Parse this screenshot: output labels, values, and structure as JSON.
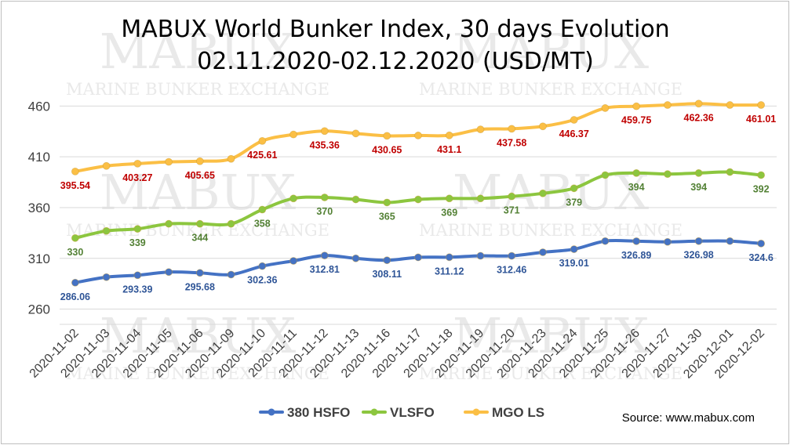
{
  "chart_data": {
    "type": "line",
    "title": "MABUX World Bunker Index, 30 days Evolution",
    "subtitle": "02.11.2020-02.12.2020 (USD/MT)",
    "categories": [
      "2020-11-02",
      "2020-11-03",
      "2020-11-04",
      "2020-11-05",
      "2020-11-06",
      "2020-11-09",
      "2020-11-10",
      "2020-11-11",
      "2020-11-12",
      "2020-11-13",
      "2020-11-16",
      "2020-11-17",
      "2020-11-18",
      "2020-11-19",
      "2020-11-20",
      "2020-11-23",
      "2020-11-24",
      "2020-11-25",
      "2020-11-26",
      "2020-11-27",
      "2020-11-30",
      "2020-12-01",
      "2020-12-02"
    ],
    "y_ticks": [
      260,
      310,
      360,
      410,
      460
    ],
    "ylim": [
      245,
      478
    ],
    "grid": "horizontal",
    "legend_position": "bottom",
    "series": [
      {
        "name": "380 HSFO",
        "color": "#4472c4",
        "label_color": "#2f5597",
        "label_position": "below",
        "values": [
          286.06,
          291.5,
          293.39,
          296.5,
          295.68,
          294,
          302.36,
          307.5,
          312.81,
          310,
          308.11,
          311,
          311.12,
          312.5,
          312.46,
          316,
          319.01,
          327,
          326.89,
          326.2,
          326.98,
          327,
          324.6
        ],
        "labels": [
          "286.06",
          "",
          "293.39",
          "",
          "295.68",
          "",
          "302.36",
          "",
          "312.81",
          "",
          "308.11",
          "",
          "311.12",
          "",
          "312.46",
          "",
          "319.01",
          "",
          "326.89",
          "",
          "326.98",
          "",
          "324.6"
        ]
      },
      {
        "name": "VLSFO",
        "color": "#8cc63f",
        "label_color": "#538135",
        "label_position": "below",
        "values": [
          330,
          337,
          339,
          344,
          344,
          344,
          358,
          369,
          370,
          368,
          365,
          368,
          369,
          369,
          371,
          374,
          379,
          392,
          394,
          393,
          394,
          395,
          392
        ],
        "labels": [
          "330",
          "",
          "339",
          "",
          "344",
          "",
          "358",
          "",
          "370",
          "",
          "365",
          "",
          "369",
          "",
          "371",
          "",
          "379",
          "",
          "394",
          "",
          "394",
          "",
          "392"
        ]
      },
      {
        "name": "MGO LS",
        "color": "#fbbf45",
        "label_color": "#c00000",
        "label_position": "below",
        "values": [
          395.54,
          401,
          403.27,
          405,
          405.65,
          408,
          425.61,
          432,
          435.36,
          433,
          430.65,
          431,
          431.1,
          437,
          437.58,
          440,
          446.37,
          458,
          459.75,
          461,
          462.36,
          461,
          461.01
        ],
        "labels": [
          "395.54",
          "",
          "403.27",
          "",
          "405.65",
          "",
          "425.61",
          "",
          "435.36",
          "",
          "430.65",
          "",
          "431.1",
          "",
          "437.58",
          "",
          "446.37",
          "",
          "459.75",
          "",
          "462.36",
          "",
          "461.01"
        ]
      }
    ]
  },
  "watermark": {
    "big": "MABUX",
    "small": "MARINE BUNKER EXCHANGE"
  },
  "source": "Source: www.mabux.com"
}
